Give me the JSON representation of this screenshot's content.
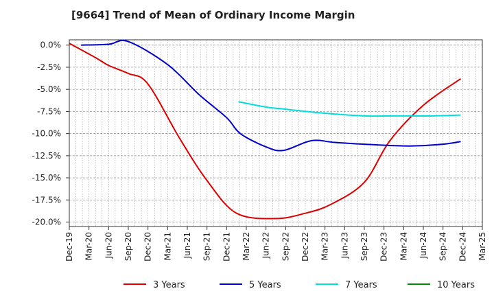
{
  "title": "[9664]  Trend of Mean of Ordinary Income Margin",
  "chart_data": {
    "type": "line",
    "title": "[9664]  Trend of Mean of Ordinary Income Margin",
    "xlabel": "",
    "ylabel": "",
    "ylim": [
      -20.5,
      0.6
    ],
    "yticks": [
      0,
      -2.5,
      -5,
      -7.5,
      -10,
      -12.5,
      -15,
      -17.5,
      -20
    ],
    "ytick_labels": [
      "0.0%",
      "-2.5%",
      "-5.0%",
      "-7.5%",
      "-10.0%",
      "-12.5%",
      "-15.0%",
      "-17.5%",
      "-20.0%"
    ],
    "x_categories": [
      "Dec-19",
      "Mar-20",
      "Jun-20",
      "Sep-20",
      "Dec-20",
      "Mar-21",
      "Jun-21",
      "Sep-21",
      "Dec-21",
      "Mar-22",
      "Jun-22",
      "Sep-22",
      "Dec-22",
      "Mar-23",
      "Jun-23",
      "Sep-23",
      "Dec-23",
      "Mar-24",
      "Jun-24",
      "Sep-24",
      "Dec-24",
      "Mar-25"
    ],
    "grid": true,
    "legend_position": "bottom",
    "series": [
      {
        "name": "3 Years",
        "color": "#dd0000",
        "values": [
          0.2,
          -1.5,
          -2.3,
          -3.2,
          -4.4,
          -10.5,
          -15.3,
          -19.0,
          -19.6,
          -19.0,
          -18.0,
          -15.5,
          -10.8,
          -6.8,
          -3.8
        ]
      },
      {
        "name": "5 Years",
        "color": "#0000cc",
        "values": [
          0.0,
          0.1,
          0.4,
          -2.2,
          -5.6,
          -8.2,
          -10.0,
          -11.5,
          -11.9,
          -10.8,
          -11.0,
          -11.2,
          -11.4,
          -11.2,
          -10.9
        ]
      },
      {
        "name": "7 Years",
        "color": "#00dddd",
        "values": [
          -6.4,
          -7.0,
          -7.2,
          -7.7,
          -8.0,
          -8.0,
          -8.0,
          -7.9
        ]
      },
      {
        "name": "10 Years",
        "color": "#008800",
        "values": []
      }
    ]
  }
}
